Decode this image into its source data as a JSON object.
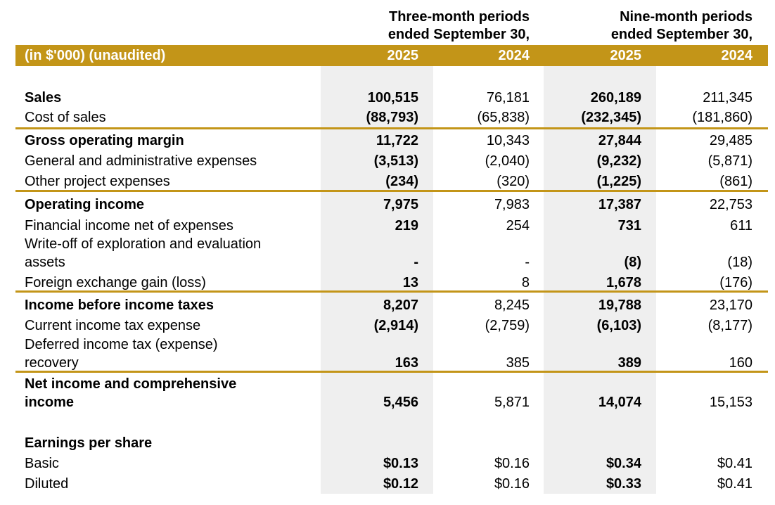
{
  "header": {
    "unit_label": "(in $'000) (unaudited)",
    "period1_line1": "Three-month periods",
    "period1_line2": "ended September 30,",
    "period2_line1": "Nine-month periods",
    "period2_line2": "ended September 30,",
    "years": [
      "2025",
      "2024",
      "2025",
      "2024"
    ]
  },
  "rows": [
    {
      "label": "Sales",
      "v": [
        "100,515",
        "76,181",
        "260,189",
        "211,345"
      ]
    },
    {
      "label": "Cost of sales",
      "v": [
        "(88,793)",
        "(65,838)",
        "(232,345)",
        "(181,860)"
      ]
    },
    {
      "label": "Gross operating margin",
      "v": [
        "11,722",
        "10,343",
        "27,844",
        "29,485"
      ]
    },
    {
      "label": "General and administrative expenses",
      "v": [
        "(3,513)",
        "(2,040)",
        "(9,232)",
        "(5,871)"
      ]
    },
    {
      "label": "Other project expenses",
      "v": [
        "(234)",
        "(320)",
        "(1,225)",
        "(861)"
      ]
    },
    {
      "label": "Operating income",
      "v": [
        "7,975",
        "7,983",
        "17,387",
        "22,753"
      ]
    },
    {
      "label": "Financial income net of expenses",
      "v": [
        "219",
        "254",
        "731",
        "611"
      ]
    },
    {
      "label_line1": "Write-off of exploration and evaluation",
      "label_line2": "assets",
      "v": [
        "-",
        "-",
        "(8)",
        "(18)"
      ]
    },
    {
      "label": "Foreign exchange gain (loss)",
      "v": [
        "13",
        "8",
        "1,678",
        "(176)"
      ]
    },
    {
      "label": "Income before income taxes",
      "v": [
        "8,207",
        "8,245",
        "19,788",
        "23,170"
      ]
    },
    {
      "label": "Current income tax expense",
      "v": [
        "(2,914)",
        "(2,759)",
        "(6,103)",
        "(8,177)"
      ]
    },
    {
      "label_line1": "Deferred income tax (expense)",
      "label_line2": "recovery",
      "v": [
        "163",
        "385",
        "389",
        "160"
      ]
    },
    {
      "label_line1": "Net income and comprehensive",
      "label_line2": "income",
      "v": [
        "5,456",
        "5,871",
        "14,074",
        "15,153"
      ]
    },
    {
      "label": "Earnings per share"
    },
    {
      "label": "Basic",
      "v": [
        "$0.13",
        "$0.16",
        "$0.34",
        "$0.41"
      ]
    },
    {
      "label": "Diluted",
      "v": [
        "$0.12",
        "$0.16",
        "$0.33",
        "$0.41"
      ]
    }
  ],
  "colors": {
    "accent": "#c39518",
    "shade": "#efefef"
  }
}
